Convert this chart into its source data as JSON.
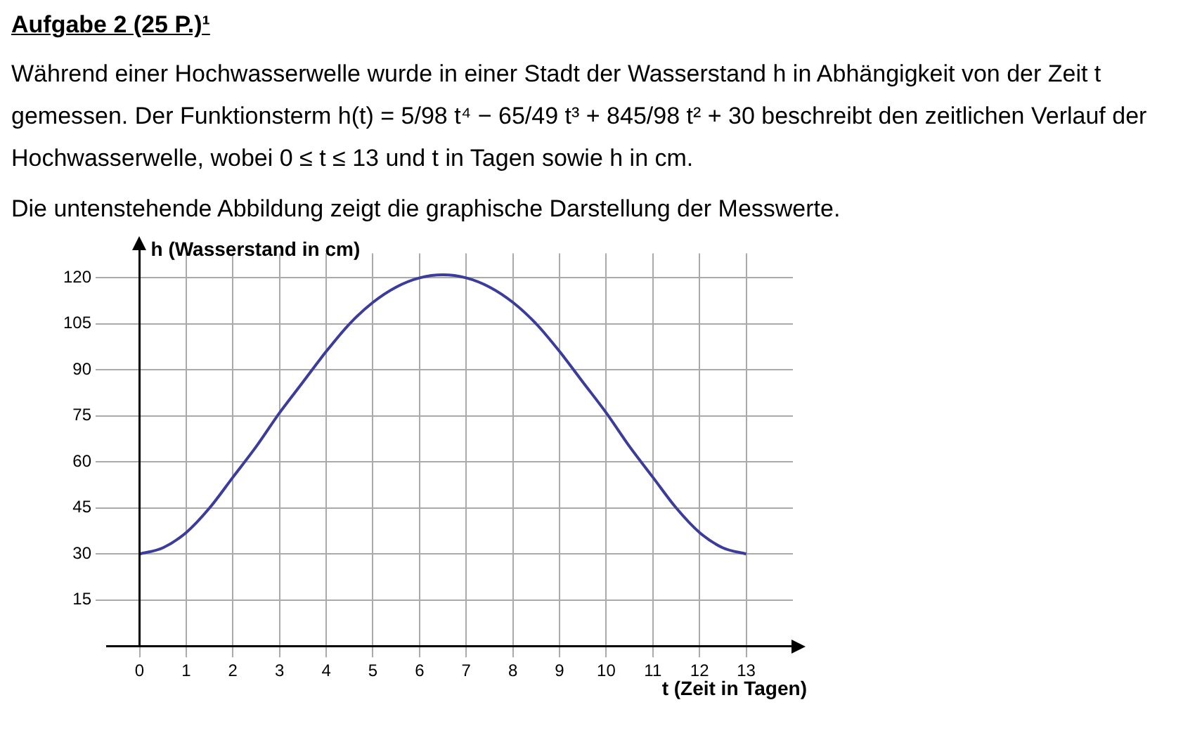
{
  "chart_data": {
    "type": "line",
    "title": "Aufgabe 2 (25 P.)¹",
    "annotations": [
      "Während einer Hochwasserwelle wurde in einer Stadt der Wasserstand h in Abhängigkeit von der Zeit t gemessen. Der Funktionsterm h(t) = 5/98 t⁴ − 65/49 t³ + 845/98 t² + 30 beschreibt den zeitlichen Verlauf der Hochwasserwelle, wobei 0 ≤ t ≤ 13 und t in Tagen sowie h in cm.",
      "Die untenstehende Abbildung zeigt die graphische Darstellung der Messwerte."
    ],
    "xlabel": "t (Zeit in Tagen)",
    "ylabel": "h (Wasserstand in cm)",
    "x": [
      0,
      0.5,
      1,
      1.5,
      2,
      2.5,
      3,
      3.5,
      4,
      4.5,
      5,
      5.5,
      6,
      6.5,
      7,
      7.5,
      8,
      8.5,
      9,
      9.5,
      10,
      10.5,
      11,
      11.5,
      12,
      12.5,
      13
    ],
    "series": [
      {
        "color": "#3c3c9c",
        "values": [
          30,
          32,
          37,
          45,
          55,
          65,
          76,
          86,
          96,
          105,
          112,
          117,
          120,
          121,
          120,
          117,
          112,
          105,
          96,
          86,
          76,
          65,
          55,
          45,
          37,
          32,
          30
        ]
      }
    ],
    "xlim": [
      -0.7,
      14
    ],
    "ylim": [
      0,
      128
    ],
    "xticks": [
      0,
      1,
      2,
      3,
      4,
      5,
      6,
      7,
      8,
      9,
      10,
      11,
      12,
      13
    ],
    "yticks": [
      15,
      30,
      45,
      60,
      75,
      90,
      105,
      120
    ],
    "grid": true,
    "marker": "none",
    "line_style": "solid",
    "legend": false
  }
}
